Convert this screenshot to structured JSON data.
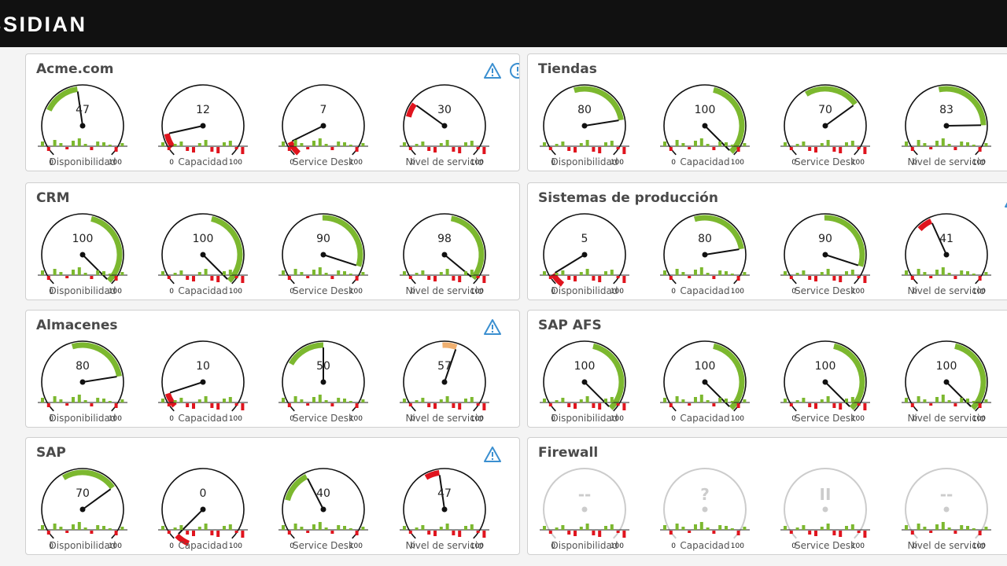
{
  "app": {
    "logo": "BSIDIAN"
  },
  "colors": {
    "ok": "#7cb82f",
    "bad": "#e0141e",
    "warn": "#f0b070",
    "inactive": "#cccccc",
    "alert": "#3b8fd0"
  },
  "panels": [
    {
      "title": "Acme.com",
      "alerts": [
        "warning-icon",
        "info-icon"
      ],
      "gauges": [
        {
          "label": "Disponibilidad",
          "value": "47",
          "color": "ok",
          "min": "0",
          "max": "100"
        },
        {
          "label": "Capacidad",
          "value": "12",
          "color": "bad",
          "min": "0",
          "max": "100"
        },
        {
          "label": "Service Desk",
          "value": "7",
          "color": "bad",
          "min": "0",
          "max": "100"
        },
        {
          "label": "Nivel de servicio",
          "value": "30",
          "color": "bad",
          "min": "0",
          "max": "100"
        }
      ]
    },
    {
      "title": "Tiendas",
      "alerts": [],
      "gauges": [
        {
          "label": "Disponibilidad",
          "value": "80",
          "color": "ok",
          "min": "0",
          "max": "100"
        },
        {
          "label": "Capacidad",
          "value": "100",
          "color": "ok",
          "min": "0",
          "max": "100"
        },
        {
          "label": "Service Desk",
          "value": "70",
          "color": "ok",
          "min": "0",
          "max": "100"
        },
        {
          "label": "Nivel de servicio",
          "value": "83",
          "color": "ok",
          "min": "0",
          "max": "100"
        }
      ]
    },
    {
      "title": "CRM",
      "alerts": [],
      "gauges": [
        {
          "label": "Disponibilidad",
          "value": "100",
          "color": "ok",
          "min": "0",
          "max": "100"
        },
        {
          "label": "Capacidad",
          "value": "100",
          "color": "ok",
          "min": "0",
          "max": "100"
        },
        {
          "label": "Service Desk",
          "value": "90",
          "color": "ok",
          "min": "0",
          "max": "100"
        },
        {
          "label": "Nivel de servicio",
          "value": "98",
          "color": "ok",
          "min": "0",
          "max": "100"
        }
      ]
    },
    {
      "title": "Sistemas de producción",
      "alerts": [
        "warning-icon"
      ],
      "gauges": [
        {
          "label": "Disponibilidad",
          "value": "5",
          "color": "bad",
          "min": "0",
          "max": "100"
        },
        {
          "label": "Capacidad",
          "value": "80",
          "color": "ok",
          "min": "0",
          "max": "100"
        },
        {
          "label": "Service Desk",
          "value": "90",
          "color": "ok",
          "min": "0",
          "max": "100"
        },
        {
          "label": "Nivel de servicio",
          "value": "41",
          "color": "bad",
          "min": "0",
          "max": "100"
        }
      ]
    },
    {
      "title": "Almacenes",
      "alerts": [
        "warning-icon"
      ],
      "gauges": [
        {
          "label": "Disponibilidad",
          "value": "80",
          "color": "ok",
          "min": "0",
          "max": "100"
        },
        {
          "label": "Capacidad",
          "value": "10",
          "color": "bad",
          "min": "0",
          "max": "100"
        },
        {
          "label": "Service Desk",
          "value": "50",
          "color": "ok",
          "min": "0",
          "max": "100"
        },
        {
          "label": "Nivel de servicio",
          "value": "57",
          "color": "warn",
          "min": "0",
          "max": "100"
        }
      ]
    },
    {
      "title": "SAP AFS",
      "alerts": [],
      "gauges": [
        {
          "label": "Disponibilidad",
          "value": "100",
          "color": "ok",
          "min": "0",
          "max": "100"
        },
        {
          "label": "Capacidad",
          "value": "100",
          "color": "ok",
          "min": "0",
          "max": "100"
        },
        {
          "label": "Service Desk",
          "value": "100",
          "color": "ok",
          "min": "0",
          "max": "100"
        },
        {
          "label": "Nivel de servicio",
          "value": "100",
          "color": "ok",
          "min": "0",
          "max": "100"
        }
      ]
    },
    {
      "title": "SAP",
      "alerts": [
        "warning-icon"
      ],
      "gauges": [
        {
          "label": "Disponibilidad",
          "value": "70",
          "color": "ok",
          "min": "0",
          "max": "100"
        },
        {
          "label": "Capacidad",
          "value": "0",
          "color": "bad",
          "min": "0",
          "max": "100"
        },
        {
          "label": "Service Desk",
          "value": "40",
          "color": "ok",
          "min": "0",
          "max": "100"
        },
        {
          "label": "Nivel de servicio",
          "value": "47",
          "color": "bad",
          "min": "0",
          "max": "100"
        }
      ]
    },
    {
      "title": "Firewall",
      "alerts": [],
      "gauges": [
        {
          "label": "Disponibilidad",
          "value": "--",
          "color": "inactive",
          "min": "0",
          "max": "100"
        },
        {
          "label": "Capacidad",
          "value": "?",
          "color": "inactive",
          "min": "0",
          "max": "100"
        },
        {
          "label": "Service Desk",
          "value": "II",
          "color": "inactive",
          "min": "0",
          "max": "100"
        },
        {
          "label": "Nivel de servicio",
          "value": "--",
          "color": "inactive",
          "min": "0",
          "max": "100"
        }
      ]
    }
  ]
}
